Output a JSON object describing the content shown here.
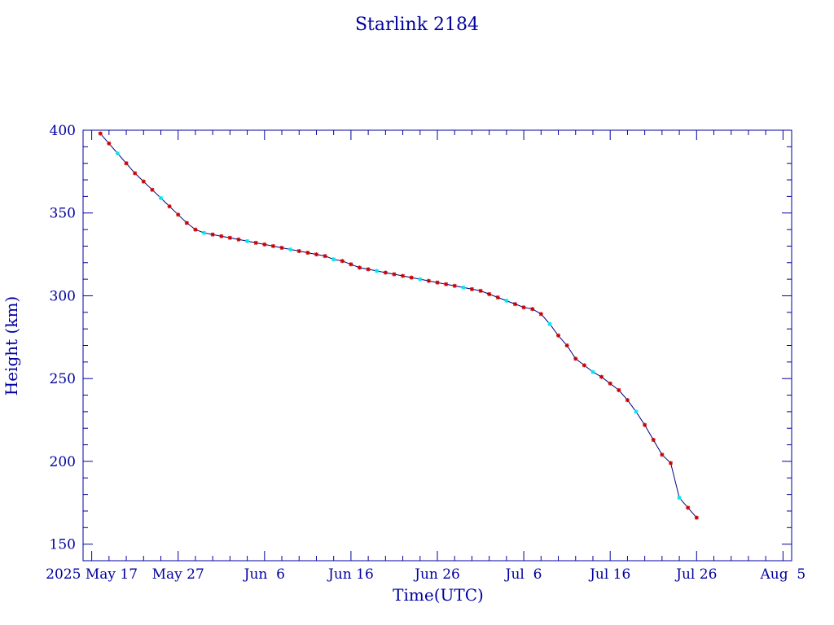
{
  "chart_data": {
    "type": "line",
    "title": "Starlink 2184",
    "xlabel": "Time(UTC)",
    "ylabel": "Height (km)",
    "ylim": [
      140,
      400
    ],
    "ytick_labels": [
      "150",
      "200",
      "250",
      "300",
      "350",
      "400"
    ],
    "ytick_values": [
      150,
      200,
      250,
      300,
      350,
      400
    ],
    "xlim": [
      "2025-05-16",
      "2025-08-06"
    ],
    "xtick_labels": [
      "2025 May 17",
      "May 27",
      "Jun  6",
      "Jun 16",
      "Jun 26",
      "Jul  6",
      "Jul 16",
      "Jul 26",
      "Aug  5"
    ],
    "xtick_dates": [
      "2025-05-17",
      "2025-05-27",
      "2025-06-06",
      "2025-06-16",
      "2025-06-26",
      "2025-07-06",
      "2025-07-16",
      "2025-07-26",
      "2025-08-05"
    ],
    "grid": false,
    "colors": {
      "axis": "#0000a0",
      "line": "#000080",
      "point": "#cc0000",
      "highlight": "#00e5ee"
    },
    "series": [
      {
        "x": [
          "2025-05-18",
          "2025-05-19",
          "2025-05-20",
          "2025-05-21",
          "2025-05-22",
          "2025-05-23",
          "2025-05-24",
          "2025-05-25",
          "2025-05-26",
          "2025-05-27",
          "2025-05-28",
          "2025-05-29",
          "2025-05-30",
          "2025-05-31",
          "2025-06-01",
          "2025-06-02",
          "2025-06-03",
          "2025-06-04",
          "2025-06-05",
          "2025-06-06",
          "2025-06-07",
          "2025-06-08",
          "2025-06-09",
          "2025-06-10",
          "2025-06-11",
          "2025-06-12",
          "2025-06-13",
          "2025-06-14",
          "2025-06-15",
          "2025-06-16",
          "2025-06-17",
          "2025-06-18",
          "2025-06-19",
          "2025-06-20",
          "2025-06-21",
          "2025-06-22",
          "2025-06-23",
          "2025-06-24",
          "2025-06-25",
          "2025-06-26",
          "2025-06-27",
          "2025-06-28",
          "2025-06-29",
          "2025-06-30",
          "2025-07-01",
          "2025-07-02",
          "2025-07-03",
          "2025-07-04",
          "2025-07-05",
          "2025-07-06",
          "2025-07-07",
          "2025-07-08",
          "2025-07-09",
          "2025-07-10",
          "2025-07-11",
          "2025-07-12",
          "2025-07-13",
          "2025-07-14",
          "2025-07-15",
          "2025-07-16",
          "2025-07-17",
          "2025-07-18",
          "2025-07-19",
          "2025-07-20",
          "2025-07-21",
          "2025-07-22",
          "2025-07-23",
          "2025-07-24",
          "2025-07-25",
          "2025-07-26"
        ],
        "y": [
          398,
          392,
          386,
          380,
          374,
          369,
          364,
          359,
          354,
          349,
          344,
          340,
          338,
          337,
          336,
          335,
          334,
          333,
          332,
          331,
          330,
          329,
          328,
          327,
          326,
          325,
          324,
          322,
          321,
          319,
          317,
          316,
          315,
          314,
          313,
          312,
          311,
          310,
          309,
          308,
          307,
          306,
          305,
          304,
          303,
          301,
          299,
          297,
          295,
          293,
          292,
          289,
          283,
          276,
          270,
          262,
          258,
          254,
          251,
          247,
          243,
          237,
          230,
          222,
          213,
          204,
          199,
          178,
          172,
          166
        ]
      }
    ]
  }
}
